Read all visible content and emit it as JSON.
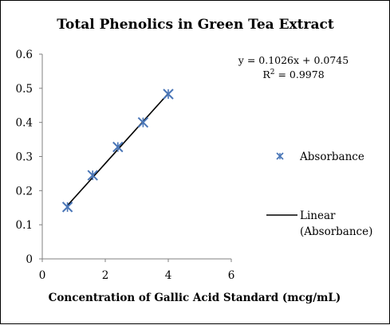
{
  "chart_data": {
    "type": "scatter",
    "title": "Total Phenolics in Green Tea Extract",
    "xlabel": "Concentration of Gallic Acid Standard (mcg/mL)",
    "ylabel": "",
    "xlim": [
      0,
      6
    ],
    "ylim": [
      0,
      0.6
    ],
    "x_ticks": [
      "0",
      "2",
      "4",
      "6"
    ],
    "y_ticks": [
      "0",
      "0.1",
      "0.2",
      "0.3",
      "0.4",
      "0.5",
      "0.6"
    ],
    "grid": false,
    "legend_position": "right",
    "series": [
      {
        "name": "Absorbance",
        "type": "scatter",
        "marker": "asterisk",
        "color": "#4a76b7",
        "x": [
          0.8,
          1.6,
          2.4,
          3.2,
          4.0
        ],
        "y": [
          0.152,
          0.245,
          0.328,
          0.4,
          0.483
        ]
      },
      {
        "name": "Linear (Absorbance)",
        "type": "line",
        "color": "#000000",
        "slope": 0.1026,
        "intercept": 0.0745,
        "x_range": [
          0.8,
          4.0
        ]
      }
    ],
    "annotations": {
      "equation": "y = 0.1026x + 0.0745",
      "r2_prefix": "R",
      "r2_superscript": "2",
      "r2_value": " = 0.9978"
    }
  }
}
